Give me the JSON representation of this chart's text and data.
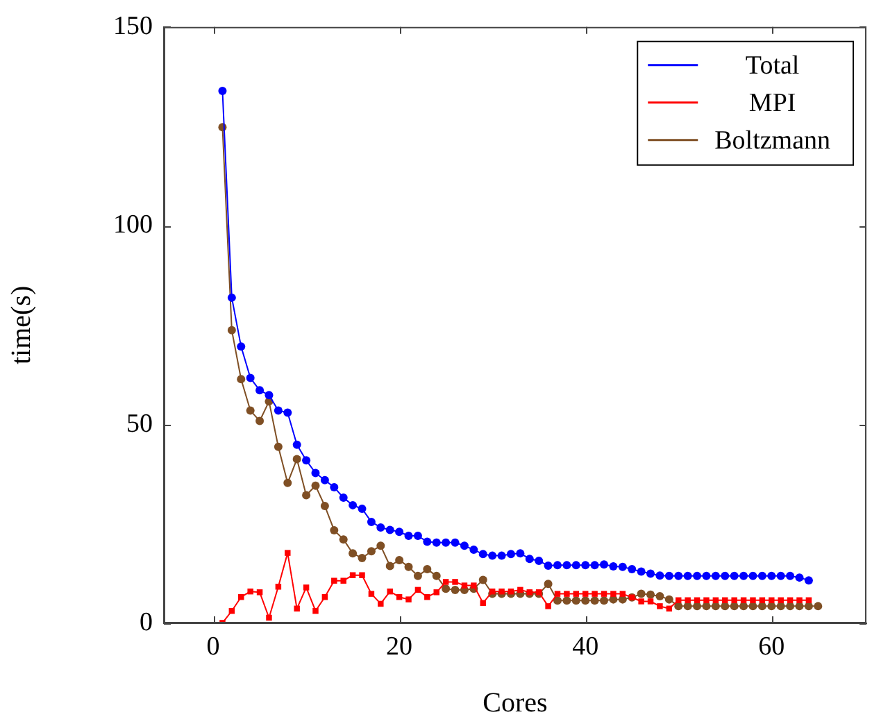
{
  "chart_data": {
    "type": "line",
    "xlabel": "Cores",
    "ylabel": "time(s)",
    "xlim": [
      -5.3,
      70.2
    ],
    "ylim": [
      0,
      150
    ],
    "xticks": [
      0,
      20,
      40,
      60
    ],
    "yticks": [
      0,
      50,
      100,
      150
    ],
    "grid": false,
    "legend": "top right",
    "line_style": "solid",
    "series": [
      {
        "name": "Total",
        "color": "#0000ff",
        "marker": "circle",
        "x": [
          1,
          2,
          3,
          4,
          5,
          6,
          7,
          8,
          9,
          10,
          11,
          12,
          13,
          14,
          15,
          16,
          17,
          18,
          19,
          20,
          21,
          22,
          23,
          24,
          25,
          26,
          27,
          28,
          29,
          30,
          31,
          32,
          33,
          34,
          35,
          36,
          37,
          38,
          39,
          40,
          41,
          42,
          43,
          44,
          45,
          46,
          47,
          48,
          49,
          50,
          51,
          52,
          53,
          54,
          55,
          56,
          57,
          58,
          59,
          60,
          61,
          62,
          63,
          64
        ],
        "values": [
          133.9,
          81.9,
          69.6,
          61.7,
          58.6,
          57.4,
          53.5,
          53,
          44.9,
          41,
          37.8,
          36,
          34.2,
          31.6,
          29.7,
          28.8,
          25.5,
          24.1,
          23.5,
          23,
          22,
          22,
          20.5,
          20.3,
          20.3,
          20.3,
          19.5,
          18.5,
          17.4,
          17,
          17,
          17.4,
          17.6,
          16.2,
          15.7,
          14.5,
          14.6,
          14.6,
          14.6,
          14.6,
          14.6,
          14.8,
          14.3,
          14.2,
          13.6,
          13,
          12.5,
          12,
          11.9,
          11.9,
          11.9,
          11.9,
          11.9,
          11.9,
          11.9,
          11.9,
          11.9,
          11.9,
          11.9,
          11.9,
          11.9,
          11.9,
          11.5,
          10.8
        ]
      },
      {
        "name": "MPI",
        "color": "#ff0000",
        "marker": "square",
        "x": [
          1,
          2,
          3,
          4,
          5,
          6,
          7,
          8,
          9,
          10,
          11,
          12,
          13,
          14,
          15,
          16,
          17,
          18,
          19,
          20,
          21,
          22,
          23,
          24,
          25,
          26,
          27,
          28,
          29,
          30,
          31,
          32,
          33,
          34,
          35,
          36,
          37,
          38,
          39,
          40,
          41,
          42,
          43,
          44,
          45,
          46,
          47,
          48,
          49,
          50,
          51,
          52,
          53,
          54,
          55,
          56,
          57,
          58,
          59,
          60,
          61,
          62,
          63,
          64
        ],
        "values": [
          0.1,
          3.1,
          6.6,
          8,
          7.8,
          1.4,
          9.2,
          17.7,
          3.7,
          9,
          3.1,
          6.6,
          10.7,
          10.7,
          12.1,
          12.1,
          7.4,
          4.9,
          8,
          6.6,
          6,
          8.4,
          6.6,
          7.8,
          10.4,
          10.4,
          9.5,
          9.5,
          5.1,
          8,
          8,
          8,
          8.4,
          7.8,
          7.8,
          4.3,
          7.4,
          7.4,
          7.4,
          7.4,
          7.4,
          7.4,
          7.4,
          7.4,
          6.5,
          5.5,
          5.5,
          4.3,
          3.7,
          5.8,
          5.8,
          5.8,
          5.8,
          5.8,
          5.8,
          5.8,
          5.8,
          5.8,
          5.8,
          5.8,
          5.8,
          5.8,
          5.8,
          5.8
        ]
      },
      {
        "name": "Boltzmann",
        "color": "#7f4f24",
        "marker": "circle",
        "x": [
          1,
          2,
          3,
          4,
          5,
          6,
          7,
          8,
          9,
          10,
          11,
          12,
          13,
          14,
          15,
          16,
          17,
          18,
          19,
          20,
          21,
          22,
          23,
          24,
          25,
          26,
          27,
          28,
          29,
          30,
          31,
          32,
          33,
          34,
          35,
          36,
          37,
          38,
          39,
          40,
          41,
          42,
          43,
          44,
          45,
          46,
          47,
          48,
          49,
          50,
          51,
          52,
          53,
          54,
          55,
          56,
          57,
          58,
          59,
          60,
          61,
          62,
          63,
          64,
          65
        ],
        "values": [
          124.8,
          73.7,
          61.4,
          53.5,
          50.9,
          55.8,
          44.4,
          35.3,
          41.3,
          32.2,
          34.6,
          29.5,
          23.4,
          21.1,
          17.6,
          16.4,
          18.1,
          19.5,
          14.4,
          15.9,
          14.2,
          11.9,
          13.6,
          11.9,
          8.7,
          8.4,
          8.4,
          8.7,
          10.9,
          7.4,
          7.4,
          7.4,
          7.4,
          7.4,
          7.4,
          9.9,
          5.7,
          5.7,
          5.7,
          5.7,
          5.7,
          5.7,
          6,
          6,
          6.5,
          7.4,
          7.2,
          6.8,
          6,
          4.3,
          4.3,
          4.3,
          4.3,
          4.3,
          4.3,
          4.3,
          4.3,
          4.3,
          4.3,
          4.3,
          4.3,
          4.3,
          4.3,
          4.3,
          4.3
        ]
      }
    ]
  }
}
